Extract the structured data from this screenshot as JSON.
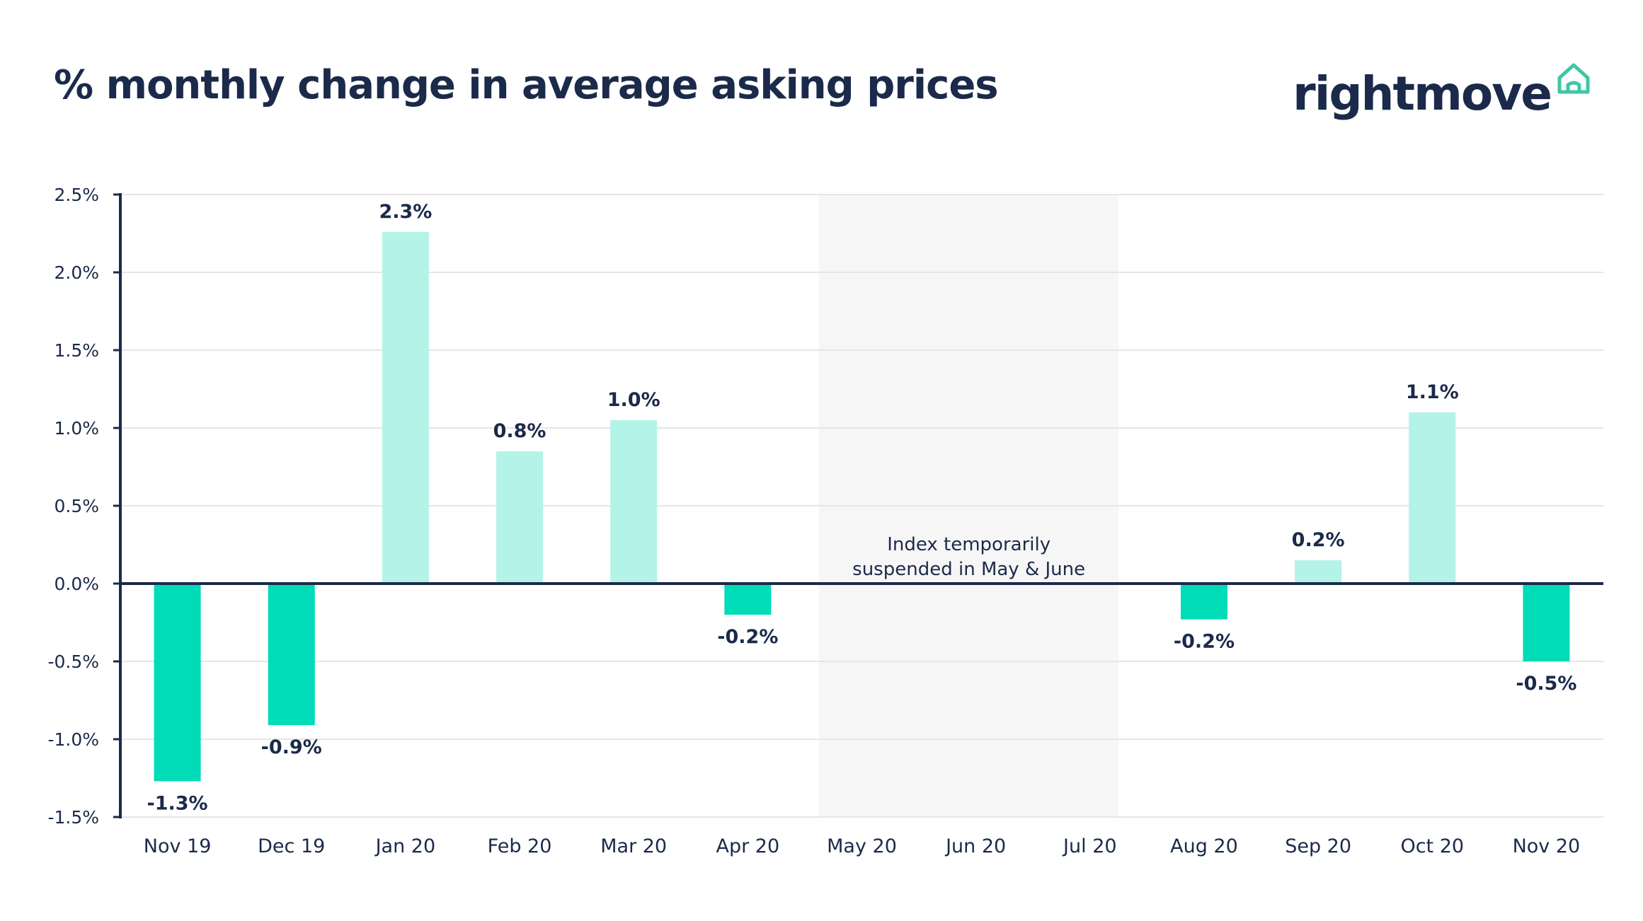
{
  "header": {
    "title": "% monthly change in average asking prices",
    "logo_text": "rightmove",
    "logo_icon": "house-outline-icon"
  },
  "colors": {
    "positive": "#b3f3e8",
    "negative": "#00dcb7",
    "text": "#1b2a4a",
    "grid": "#e6e6e6",
    "shade": "#f7f6f6",
    "logo_icon": "#3fc6a6"
  },
  "chart_data": {
    "type": "bar",
    "title": "% monthly change in average asking prices",
    "xlabel": "",
    "ylabel": "",
    "ylim": [
      -1.5,
      2.5
    ],
    "yticks": [
      2.5,
      2.0,
      1.5,
      1.0,
      0.5,
      0.0,
      -0.5,
      -1.0,
      -1.5
    ],
    "ytick_labels": [
      "2.5%",
      "2.0%",
      "1.5%",
      "1.0%",
      "0.5%",
      "0.0%",
      "-0.5%",
      "-1.0%",
      "-1.5%"
    ],
    "grid": true,
    "categories": [
      "Nov 19",
      "Dec 19",
      "Jan 20",
      "Feb 20",
      "Mar 20",
      "Apr 20",
      "May 20",
      "Jun 20",
      "Jul 20",
      "Aug 20",
      "Sep 20",
      "Oct 20",
      "Nov 20"
    ],
    "values": [
      -1.27,
      -0.91,
      2.26,
      0.85,
      1.05,
      -0.2,
      null,
      null,
      null,
      -0.23,
      0.15,
      1.1,
      -0.5
    ],
    "data_labels": [
      "-1.3%",
      "-0.9%",
      "2.3%",
      "0.8%",
      "1.0%",
      "-0.2%",
      "",
      "",
      "",
      "-0.2%",
      "0.2%",
      "1.1%",
      "-0.5%"
    ],
    "shaded_range": {
      "from": "May 20",
      "to": "Jul 20"
    },
    "annotation": [
      "Index temporarily",
      "suspended in May & June"
    ]
  }
}
